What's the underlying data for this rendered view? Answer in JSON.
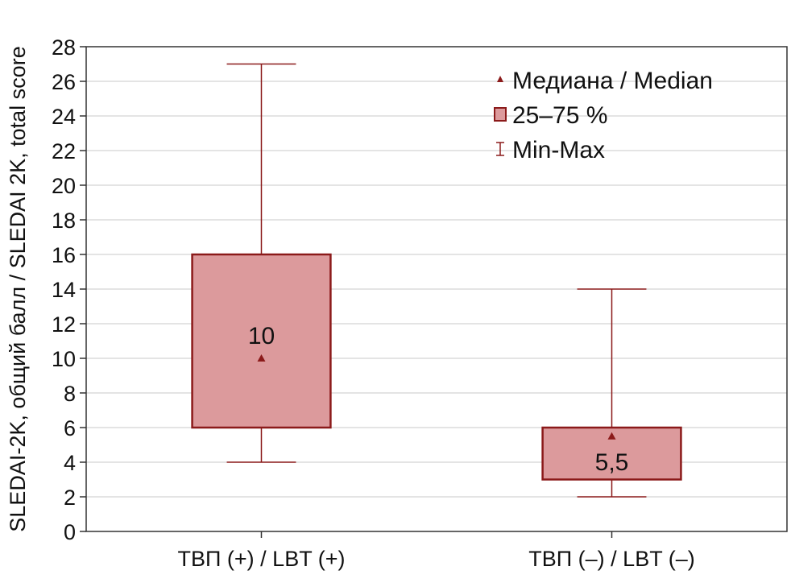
{
  "chart_data": {
    "type": "box",
    "title": "",
    "xlabel": "",
    "ylabel": "SLEDAI-2K, общий балл / SLEDAI 2K, total score",
    "ylim": [
      0,
      28
    ],
    "yticks": [
      0,
      2,
      4,
      6,
      8,
      10,
      12,
      14,
      16,
      18,
      20,
      22,
      24,
      26,
      28
    ],
    "grid": true,
    "legend_position": "top-right",
    "legend": [
      {
        "symbol": "median-triangle",
        "label": "Медиана / Median"
      },
      {
        "symbol": "iqr-box",
        "label": "25–75 %"
      },
      {
        "symbol": "whisker",
        "label": "Min-Max"
      }
    ],
    "categories": [
      "ТВП (+) / LBT (+)",
      "ТВП (–) / LBT (–)"
    ],
    "boxes": [
      {
        "category": "ТВП (+) / LBT (+)",
        "min": 4,
        "q1": 6,
        "median": 10,
        "q3": 16,
        "max": 27,
        "median_label": "10"
      },
      {
        "category": "ТВП (–) / LBT (–)",
        "min": 2,
        "q1": 3,
        "median": 5.5,
        "q3": 6,
        "max": 14,
        "median_label": "5,5"
      }
    ],
    "colors": {
      "box_fill": "#dc9a9c",
      "box_stroke": "#8b1a1a",
      "grid": "#c8c8c8",
      "axis": "#333333"
    }
  }
}
